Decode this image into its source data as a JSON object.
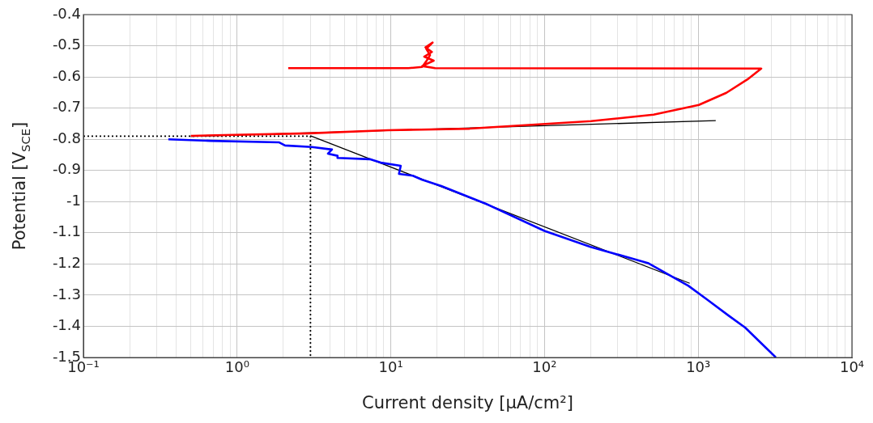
{
  "chart_data": {
    "type": "line",
    "xlabel": "Current density [μA/cm²]",
    "ylabel": "Potential [V$_{SCE}$]",
    "log": "x",
    "grid": true,
    "legend": false,
    "marker": "none",
    "xlim": [
      0.1,
      10000
    ],
    "xticks": [
      {
        "value": 0.1,
        "label": "10⁻¹"
      },
      {
        "value": 1,
        "label": "10⁰"
      },
      {
        "value": 10,
        "label": "10¹"
      },
      {
        "value": 100,
        "label": "10²"
      },
      {
        "value": 1000,
        "label": "10³"
      },
      {
        "value": 10000,
        "label": "10⁴"
      }
    ],
    "ylim": [
      -1.5,
      -0.4
    ],
    "yticks": [
      -1.5,
      -1.4,
      -1.3,
      -1.2,
      -1.1,
      -1,
      -0.9,
      -0.8,
      -0.7,
      -0.6,
      -0.5,
      -0.4
    ],
    "series": [
      {
        "color": "#0000ff",
        "x": [
          0.357,
          0.67,
          1.88,
          2.05,
          3.06,
          4.14,
          3.9,
          4.5,
          4.5,
          7.3,
          8.6,
          11.6,
          11.3,
          13.9,
          16,
          21.3,
          41.6,
          100,
          199,
          470,
          863,
          1140,
          1580,
          2019,
          3200
        ],
        "values": [
          -0.8,
          -0.805,
          -0.81,
          -0.82,
          -0.825,
          -0.833,
          -0.846,
          -0.853,
          -0.86,
          -0.864,
          -0.875,
          -0.885,
          -0.911,
          -0.917,
          -0.93,
          -0.95,
          -1.007,
          -1.094,
          -1.145,
          -1.197,
          -1.27,
          -1.314,
          -1.366,
          -1.404,
          -1.5
        ]
      },
      {
        "color": "#ff0000",
        "x": [
          0.5,
          2.9,
          9.6,
          32.6,
          201,
          512,
          1009,
          1524,
          2090,
          2570,
          19.4,
          16,
          19,
          16.5,
          18.5,
          16.8,
          18.7,
          17,
          18,
          17,
          16,
          13,
          2.15
        ],
        "values": [
          -0.789,
          -0.781,
          -0.771,
          -0.766,
          -0.742,
          -0.721,
          -0.69,
          -0.651,
          -0.608,
          -0.573,
          -0.572,
          -0.565,
          -0.548,
          -0.535,
          -0.52,
          -0.505,
          -0.49,
          -0.51,
          -0.53,
          -0.55,
          -0.568,
          -0.572,
          -0.572
        ]
      },
      {
        "color": "#000000",
        "x": [
          0.5,
          1300
        ],
        "values": [
          -0.791,
          -0.74
        ]
      },
      {
        "color": "#000000",
        "x": [
          3,
          880
        ],
        "values": [
          -0.789,
          -1.262
        ]
      },
      {
        "color": "#000000",
        "line_style": "dotted",
        "x": [
          0.1,
          3,
          3
        ],
        "values": [
          -0.79,
          -0.79,
          -1.5
        ]
      }
    ]
  }
}
